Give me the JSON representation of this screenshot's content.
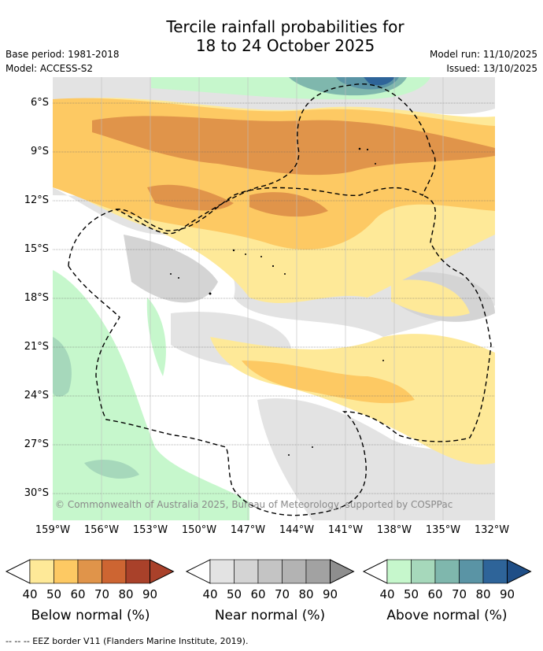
{
  "title_line1": "Tercile rainfall probabilities for",
  "title_line2": "18 to 24 October 2025",
  "base_period": "Base period: 1981-2018",
  "model": "Model: ACCESS-S2",
  "model_run": "Model run: 11/10/2025",
  "issued": "Issued: 13/10/2025",
  "lat_ticks": [
    "6°S",
    "9°S",
    "12°S",
    "15°S",
    "18°S",
    "21°S",
    "24°S",
    "27°S",
    "30°S"
  ],
  "lon_ticks": [
    "159°W",
    "156°W",
    "153°W",
    "150°W",
    "147°W",
    "144°W",
    "141°W",
    "138°W",
    "135°W",
    "132°W"
  ],
  "copyright": "© Commonwealth of Australia 2025, Bureau of Meteorology, supported by COSPPac",
  "footer": "--  --  -- EEZ border V11 (Flanders Marine Institute, 2019).",
  "colorbars": [
    {
      "label": "Below normal (%)",
      "ticks": [
        "40",
        "50",
        "60",
        "70",
        "80",
        "90"
      ],
      "colors": [
        "#fee998",
        "#fdc963",
        "#e0944a",
        "#cd6532",
        "#a9412a",
        "#a9412a"
      ]
    },
    {
      "label": "Near normal (%)",
      "ticks": [
        "40",
        "50",
        "60",
        "70",
        "80",
        "90"
      ],
      "colors": [
        "#e3e3e3",
        "#d4d4d4",
        "#c4c4c4",
        "#b3b3b3",
        "#a2a2a2",
        "#8e8e8e"
      ]
    },
    {
      "label": "Above normal (%)",
      "ticks": [
        "40",
        "50",
        "60",
        "70",
        "80",
        "90"
      ],
      "colors": [
        "#c6f7cc",
        "#a6d8bb",
        "#7fb7ad",
        "#5a94a5",
        "#2e6499",
        "#1f4e86"
      ]
    }
  ]
}
